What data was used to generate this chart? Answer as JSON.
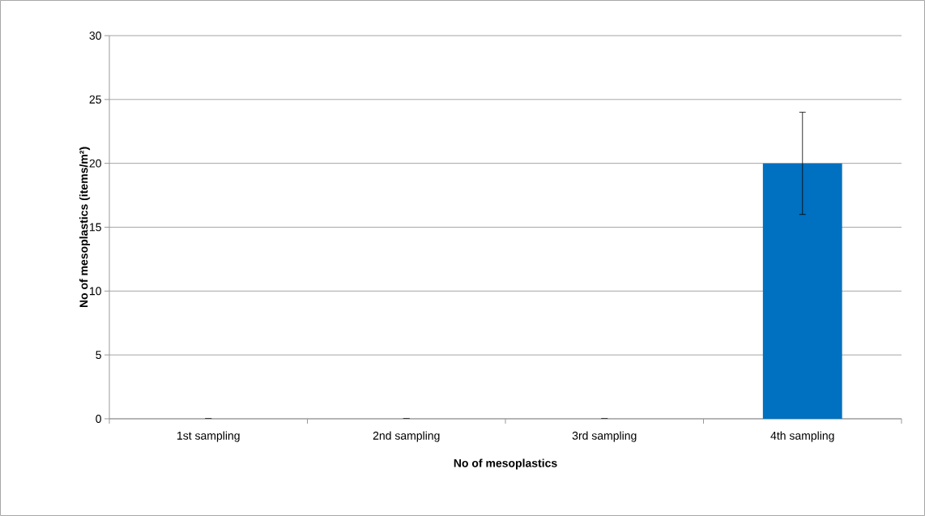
{
  "chart_data": {
    "type": "bar",
    "xlabel": "No of mesoplastics",
    "ylabel": "No of mesoplastics (items/m²)",
    "categories": [
      "1st sampling",
      "2nd sampling",
      "3rd sampling",
      "4th sampling"
    ],
    "values": [
      0,
      0,
      0,
      20
    ],
    "errors": [
      0,
      0,
      0,
      4
    ],
    "color": "#0070c0",
    "ylim": [
      0,
      30
    ],
    "yticks": [
      0,
      5,
      10,
      15,
      20,
      25,
      30
    ],
    "grid": "y"
  }
}
